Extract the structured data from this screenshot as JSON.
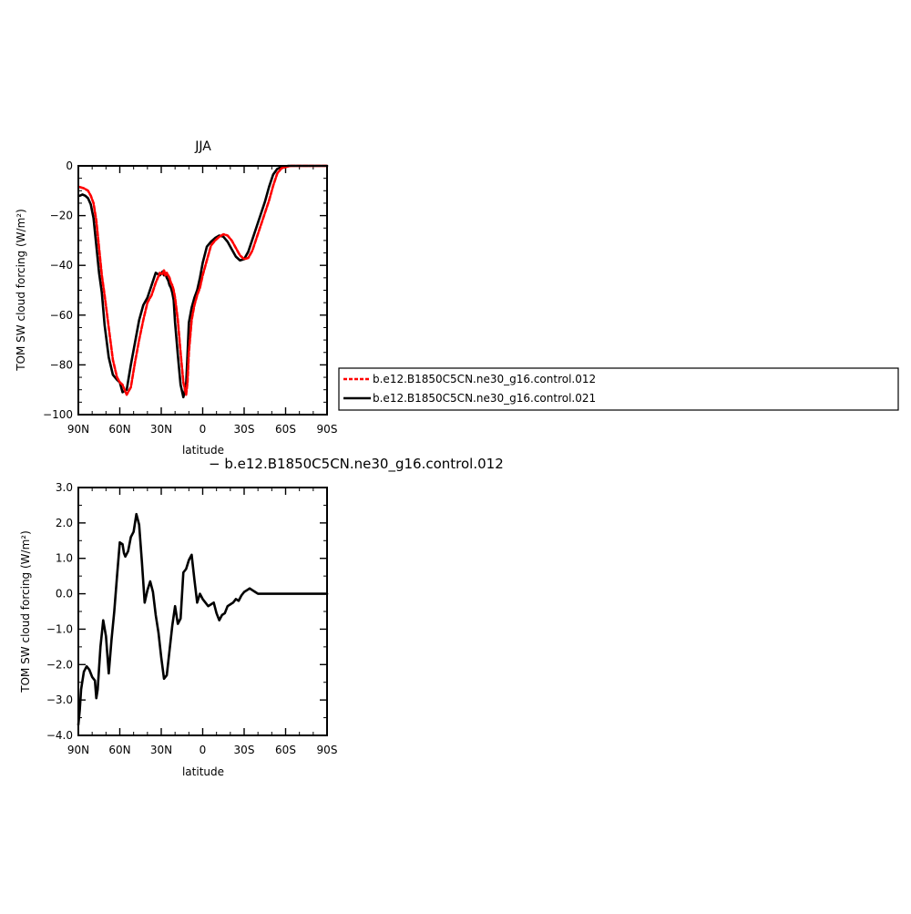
{
  "chart_data": [
    {
      "type": "line",
      "title": "JJA",
      "xlabel": "latitude",
      "ylabel": "TOM SW cloud forcing (W/m²)",
      "xlim": [
        90,
        -90
      ],
      "ylim": [
        -100,
        0
      ],
      "x_ticks": [
        90,
        60,
        30,
        0,
        -30,
        -60,
        -90
      ],
      "x_tick_labels": [
        "90N",
        "60N",
        "30N",
        "0",
        "30S",
        "60S",
        "90S"
      ],
      "y_ticks": [
        0,
        -20,
        -40,
        -60,
        -80,
        -100
      ],
      "y_tick_labels": [
        "0",
        "−20",
        "−40",
        "−60",
        "−80",
        "−100"
      ],
      "legend_position": "right",
      "series": [
        {
          "name": "b.e12.B1850C5CN.ne30_g16.control.012",
          "color": "#ff0000",
          "style": "dashed",
          "x": [
            89,
            86,
            83,
            81,
            79,
            77,
            75,
            73,
            71,
            68,
            65,
            62,
            60,
            58,
            55,
            52,
            49,
            46,
            43,
            40,
            37,
            34,
            31,
            29,
            28,
            27,
            26,
            25,
            24,
            23,
            22,
            21,
            20,
            18,
            16,
            14,
            12,
            11,
            10,
            8,
            6,
            4,
            2,
            0,
            -3,
            -6,
            -9,
            -12,
            -15,
            -18,
            -21,
            -24,
            -27,
            -30,
            -33,
            -36,
            -39,
            -42,
            -45,
            -48,
            -51,
            -54,
            -57,
            -60,
            -62,
            -64,
            -66,
            -68,
            -70,
            -75,
            -80,
            -85,
            -90
          ],
          "y": [
            -8.5,
            -9,
            -10,
            -12,
            -15,
            -22,
            -33,
            -44,
            -52,
            -65,
            -78,
            -85,
            -87,
            -88,
            -92,
            -89,
            -79,
            -70,
            -62,
            -55,
            -52,
            -47,
            -43,
            -43.5,
            -42,
            -44,
            -43,
            -44,
            -45,
            -47,
            -48,
            -50,
            -53,
            -62,
            -75,
            -87,
            -92,
            -87,
            -75,
            -62,
            -56,
            -52,
            -49,
            -44,
            -38,
            -32,
            -30,
            -28.5,
            -27.5,
            -28,
            -30,
            -33,
            -36,
            -37.5,
            -37,
            -34,
            -29,
            -24,
            -19,
            -14,
            -8,
            -3,
            -1,
            -0.5,
            -0.2,
            0,
            0,
            0,
            0,
            0,
            0,
            0,
            0
          ]
        },
        {
          "name": "b.e12.B1850C5CN.ne30_g16.control.021",
          "color": "#000000",
          "style": "solid",
          "x": [
            89,
            87,
            85,
            83,
            81,
            79,
            77,
            75,
            73,
            71,
            68,
            65,
            62,
            60,
            58,
            55,
            52,
            49,
            46,
            43,
            40,
            37,
            34,
            31,
            29,
            28,
            27,
            26,
            25,
            24,
            23,
            22,
            21,
            20,
            18,
            16,
            14,
            12,
            11,
            10,
            8,
            6,
            4,
            2,
            0,
            -3,
            -6,
            -9,
            -12,
            -15,
            -18,
            -21,
            -24,
            -27,
            -30,
            -33,
            -36,
            -39,
            -42,
            -45,
            -48,
            -51,
            -54,
            -57,
            -60,
            -62,
            -64,
            -66,
            -68,
            -70,
            -75,
            -80,
            -85,
            -90
          ],
          "y": [
            -12,
            -11.5,
            -12,
            -13,
            -15.5,
            -21,
            -32,
            -43,
            -51,
            -64,
            -77,
            -84,
            -86,
            -87,
            -91,
            -90,
            -80,
            -71,
            -62,
            -56,
            -53,
            -48,
            -43,
            -44,
            -42.5,
            -44,
            -43.5,
            -45,
            -46,
            -48,
            -49,
            -51,
            -54,
            -63,
            -76,
            -88,
            -93,
            -88,
            -76,
            -63,
            -57,
            -53,
            -50,
            -45,
            -39,
            -32.5,
            -30.5,
            -29,
            -28,
            -28.5,
            -30.5,
            -33.5,
            -36.5,
            -38,
            -37.5,
            -34.5,
            -29.5,
            -24.5,
            -19.5,
            -14.5,
            -8.5,
            -3.5,
            -1.2,
            -0.5,
            -0.2,
            0,
            0,
            0,
            0,
            0,
            0,
            0,
            0,
            0
          ]
        }
      ]
    },
    {
      "type": "line",
      "title": "− b.e12.B1850C5CN.ne30_g16.control.012",
      "xlabel": "latitude",
      "ylabel": "TOM SW cloud forcing (W/m²)",
      "xlim": [
        90,
        -90
      ],
      "ylim": [
        -4.0,
        3.0
      ],
      "x_ticks": [
        90,
        60,
        30,
        0,
        -30,
        -60,
        -90
      ],
      "x_tick_labels": [
        "90N",
        "60N",
        "30N",
        "0",
        "30S",
        "60S",
        "90S"
      ],
      "y_ticks": [
        3,
        2,
        1,
        0,
        -1,
        -2,
        -3,
        -4
      ],
      "y_tick_labels": [
        "3.0",
        "2.0",
        "1.0",
        "0.0",
        "−1.0",
        "−2.0",
        "−3.0",
        "−4.0"
      ],
      "series": [
        {
          "color": "#000000",
          "style": "solid",
          "x": [
            90,
            89,
            88,
            86,
            84,
            82,
            80,
            78,
            77,
            76,
            74,
            72,
            70,
            68,
            66,
            64,
            62,
            60,
            58,
            57,
            56,
            54,
            52,
            50,
            48,
            46,
            44,
            42,
            40,
            38,
            36,
            34,
            32,
            30,
            28,
            26,
            24,
            22,
            20,
            18,
            16,
            14,
            12,
            10,
            8,
            6,
            4,
            2,
            0,
            -2,
            -4,
            -6,
            -8,
            -10,
            -12,
            -14,
            -16,
            -18,
            -20,
            -22,
            -24,
            -26,
            -28,
            -30,
            -32,
            -34,
            -36,
            -38,
            -40,
            -42,
            -44,
            -46,
            -48,
            -50,
            -52,
            -54,
            -56,
            -58,
            -60,
            -62,
            -64,
            -66,
            -68,
            -70,
            -75,
            -80,
            -85,
            -90
          ],
          "y": [
            -3.7,
            -3.3,
            -2.7,
            -2.2,
            -2.05,
            -2.15,
            -2.35,
            -2.45,
            -2.95,
            -2.7,
            -1.5,
            -0.75,
            -1.2,
            -2.25,
            -1.3,
            -0.5,
            0.5,
            1.45,
            1.4,
            1.15,
            1.05,
            1.2,
            1.6,
            1.75,
            2.25,
            1.95,
            0.9,
            -0.25,
            0.1,
            0.35,
            0.05,
            -0.6,
            -1.1,
            -1.8,
            -2.4,
            -2.3,
            -1.6,
            -0.9,
            -0.35,
            -0.85,
            -0.7,
            0.6,
            0.7,
            0.95,
            1.1,
            0.4,
            -0.25,
            0.0,
            -0.15,
            -0.25,
            -0.35,
            -0.3,
            -0.25,
            -0.55,
            -0.75,
            -0.6,
            -0.55,
            -0.35,
            -0.3,
            -0.25,
            -0.15,
            -0.2,
            -0.05,
            0.05,
            0.1,
            0.15,
            0.1,
            0.05,
            0.0,
            0.0,
            0.0,
            0.0,
            0.0,
            0.0,
            0.0,
            0.0,
            0.0,
            0.0,
            0.0,
            0.0,
            0.0,
            0.0,
            0.0,
            0.0,
            0.0,
            0.0,
            0.0,
            0.0
          ]
        }
      ]
    }
  ]
}
